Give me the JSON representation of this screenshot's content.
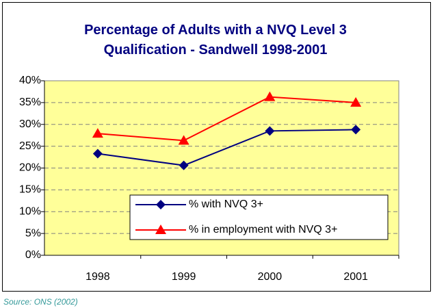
{
  "chart_data": {
    "type": "line",
    "title": "Percentage of Adults with a NVQ Level 3 Qualification - Sandwell 1998-2001",
    "categories": [
      "1998",
      "1999",
      "2000",
      "2001"
    ],
    "series": [
      {
        "name": "% with NVQ 3+",
        "color": "#000080",
        "marker": "diamond",
        "values": [
          23.3,
          20.6,
          28.5,
          28.8
        ]
      },
      {
        "name": "% in employment with NVQ 3+",
        "color": "#ff0000",
        "marker": "triangle",
        "values": [
          27.9,
          26.3,
          36.3,
          35.0
        ]
      }
    ],
    "ylim": [
      0,
      40
    ],
    "yticks": [
      {
        "value": 0,
        "label": "0%"
      },
      {
        "value": 5,
        "label": "5%"
      },
      {
        "value": 10,
        "label": "10%"
      },
      {
        "value": 15,
        "label": "15%"
      },
      {
        "value": 20,
        "label": "20%"
      },
      {
        "value": 25,
        "label": "25%"
      },
      {
        "value": 30,
        "label": "30%"
      },
      {
        "value": 35,
        "label": "35%"
      },
      {
        "value": 40,
        "label": "40%"
      }
    ],
    "grid": true,
    "plot_background": "#ffff99",
    "legend_position": "lower right",
    "source": "Source: ONS (2002)"
  }
}
